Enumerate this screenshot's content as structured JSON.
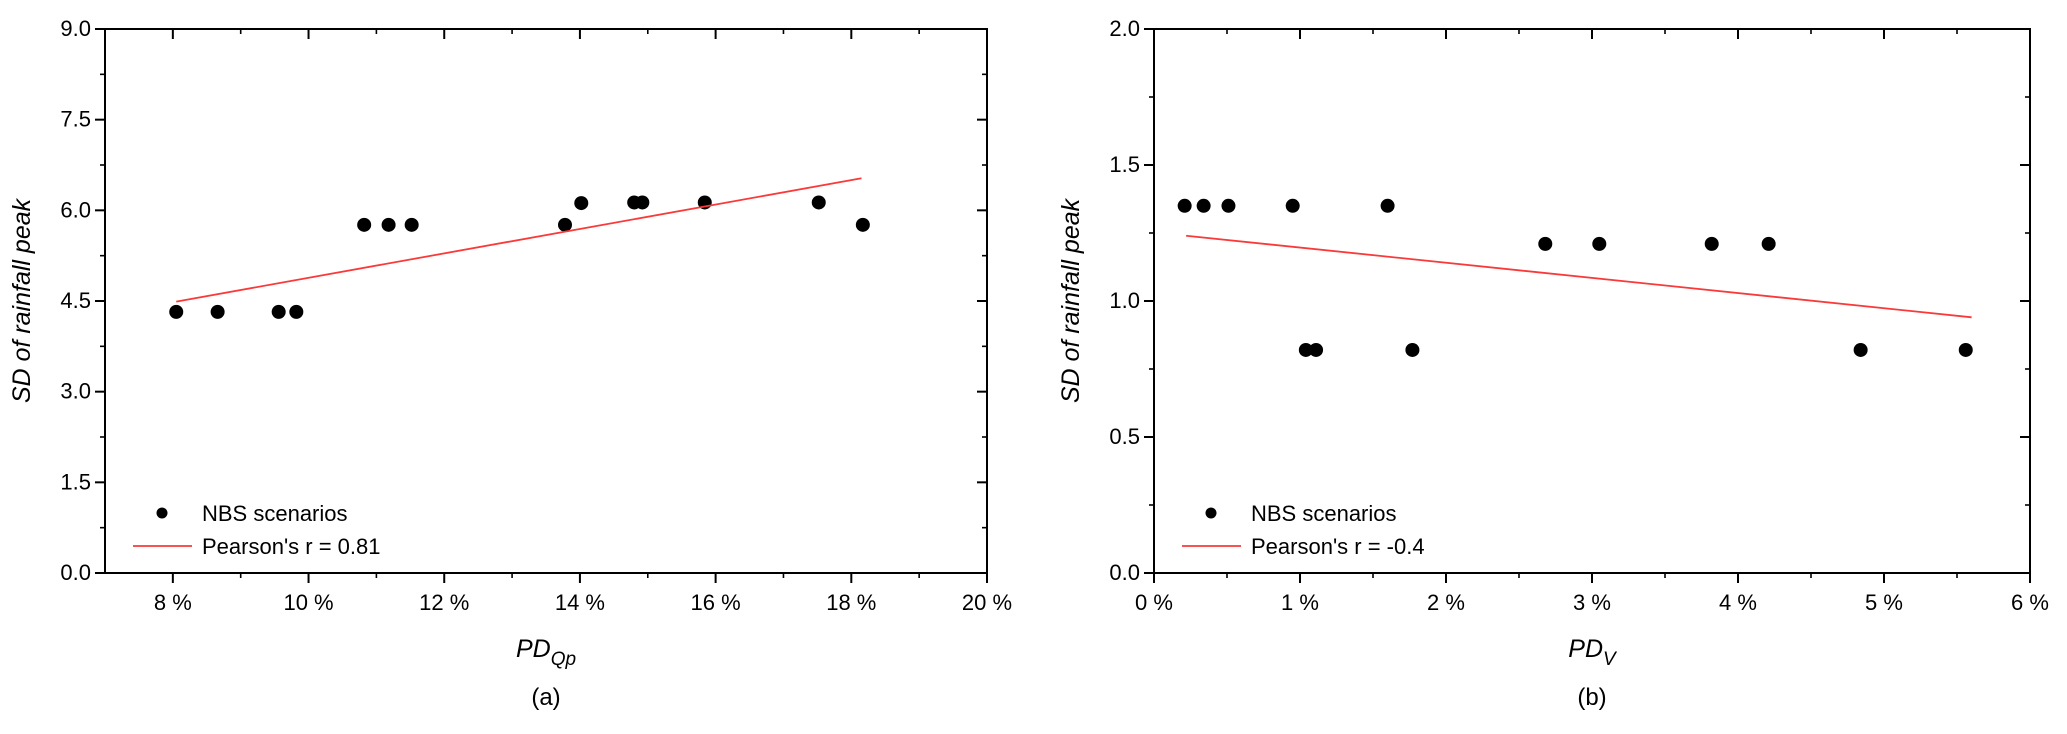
{
  "figure": {
    "background": "#ffffff",
    "series_name": "NBS scenarios"
  },
  "style": {
    "marker_color": "#000000",
    "trend_color": "#fa3a3a",
    "axis_color": "#000000"
  },
  "chart_data": [
    {
      "panel": "a",
      "type": "scatter",
      "caption": "(a)",
      "x_axis": {
        "label_base": "PD",
        "label_sub": "Qp",
        "min": 7,
        "max": 20,
        "major_ticks": [
          8,
          10,
          12,
          14,
          16,
          18,
          20
        ],
        "tick_labels": [
          "8 %",
          "10 %",
          "12 %",
          "14 %",
          "16 %",
          "18 %",
          "20 %"
        ],
        "minor_ticks": [
          9,
          11,
          13,
          15,
          17,
          19
        ]
      },
      "y_axis": {
        "label": "SD of rainfall peak",
        "min": 0,
        "max": 9,
        "major_ticks": [
          0,
          1.5,
          3,
          4.5,
          6,
          7.5,
          9
        ],
        "tick_labels": [
          "0.0",
          "1.5",
          "3.0",
          "4.5",
          "6.0",
          "7.5",
          "9.0"
        ],
        "minor_ticks": [
          0.75,
          2.25,
          3.75,
          5.25,
          6.75,
          8.25
        ]
      },
      "series": [
        {
          "name": "NBS scenarios",
          "kind": "scatter",
          "color": "#000000",
          "points": [
            [
              8.05,
              4.32
            ],
            [
              8.66,
              4.32
            ],
            [
              9.56,
              4.32
            ],
            [
              9.82,
              4.32
            ],
            [
              10.82,
              5.76
            ],
            [
              11.18,
              5.76
            ],
            [
              11.52,
              5.76
            ],
            [
              13.78,
              5.76
            ],
            [
              14.02,
              6.12
            ],
            [
              14.8,
              6.13
            ],
            [
              14.92,
              6.13
            ],
            [
              15.84,
              6.13
            ],
            [
              17.52,
              6.13
            ],
            [
              18.17,
              5.76
            ]
          ]
        },
        {
          "name": "Pearson's r = 0.81",
          "kind": "line",
          "color": "#fa3a3a",
          "points": [
            [
              8.05,
              4.49
            ],
            [
              18.15,
              6.53
            ]
          ]
        }
      ],
      "pearson_r": 0.81,
      "legend": [
        {
          "swatch": "marker",
          "label": "NBS scenarios"
        },
        {
          "swatch": "line",
          "label": "Pearson's r = 0.81"
        }
      ]
    },
    {
      "panel": "b",
      "type": "scatter",
      "caption": "(b)",
      "x_axis": {
        "label_base": "PD",
        "label_sub": "V",
        "min": 0,
        "max": 6,
        "major_ticks": [
          0,
          1,
          2,
          3,
          4,
          5,
          6
        ],
        "tick_labels": [
          "0 %",
          "1 %",
          "2 %",
          "3 %",
          "4 %",
          "5 %",
          "6 %"
        ],
        "minor_ticks": [
          0.5,
          1.5,
          2.5,
          3.5,
          4.5,
          5.5
        ]
      },
      "y_axis": {
        "label": "SD of rainfall peak",
        "min": 0,
        "max": 2,
        "major_ticks": [
          0,
          0.5,
          1.0,
          1.5,
          2.0
        ],
        "tick_labels": [
          "0.0",
          "0.5",
          "1.0",
          "1.5",
          "2.0"
        ],
        "minor_ticks": [
          0.25,
          0.75,
          1.25,
          1.75
        ]
      },
      "series": [
        {
          "name": "NBS scenarios",
          "kind": "scatter",
          "color": "#000000",
          "points": [
            [
              0.21,
              1.35
            ],
            [
              0.34,
              1.35
            ],
            [
              0.51,
              1.35
            ],
            [
              0.95,
              1.35
            ],
            [
              1.6,
              1.35
            ],
            [
              1.04,
              0.82
            ],
            [
              1.11,
              0.82
            ],
            [
              1.77,
              0.82
            ],
            [
              2.68,
              1.21
            ],
            [
              3.05,
              1.21
            ],
            [
              3.82,
              1.21
            ],
            [
              4.21,
              1.21
            ],
            [
              4.84,
              0.82
            ],
            [
              5.56,
              0.82
            ]
          ]
        },
        {
          "name": "Pearson's r = -0.4",
          "kind": "line",
          "color": "#fa3a3a",
          "points": [
            [
              0.22,
              1.24
            ],
            [
              5.6,
              0.94
            ]
          ]
        }
      ],
      "pearson_r": -0.4,
      "legend": [
        {
          "swatch": "marker",
          "label": "NBS scenarios"
        },
        {
          "swatch": "line",
          "label": "Pearson's r = -0.4"
        }
      ]
    }
  ]
}
